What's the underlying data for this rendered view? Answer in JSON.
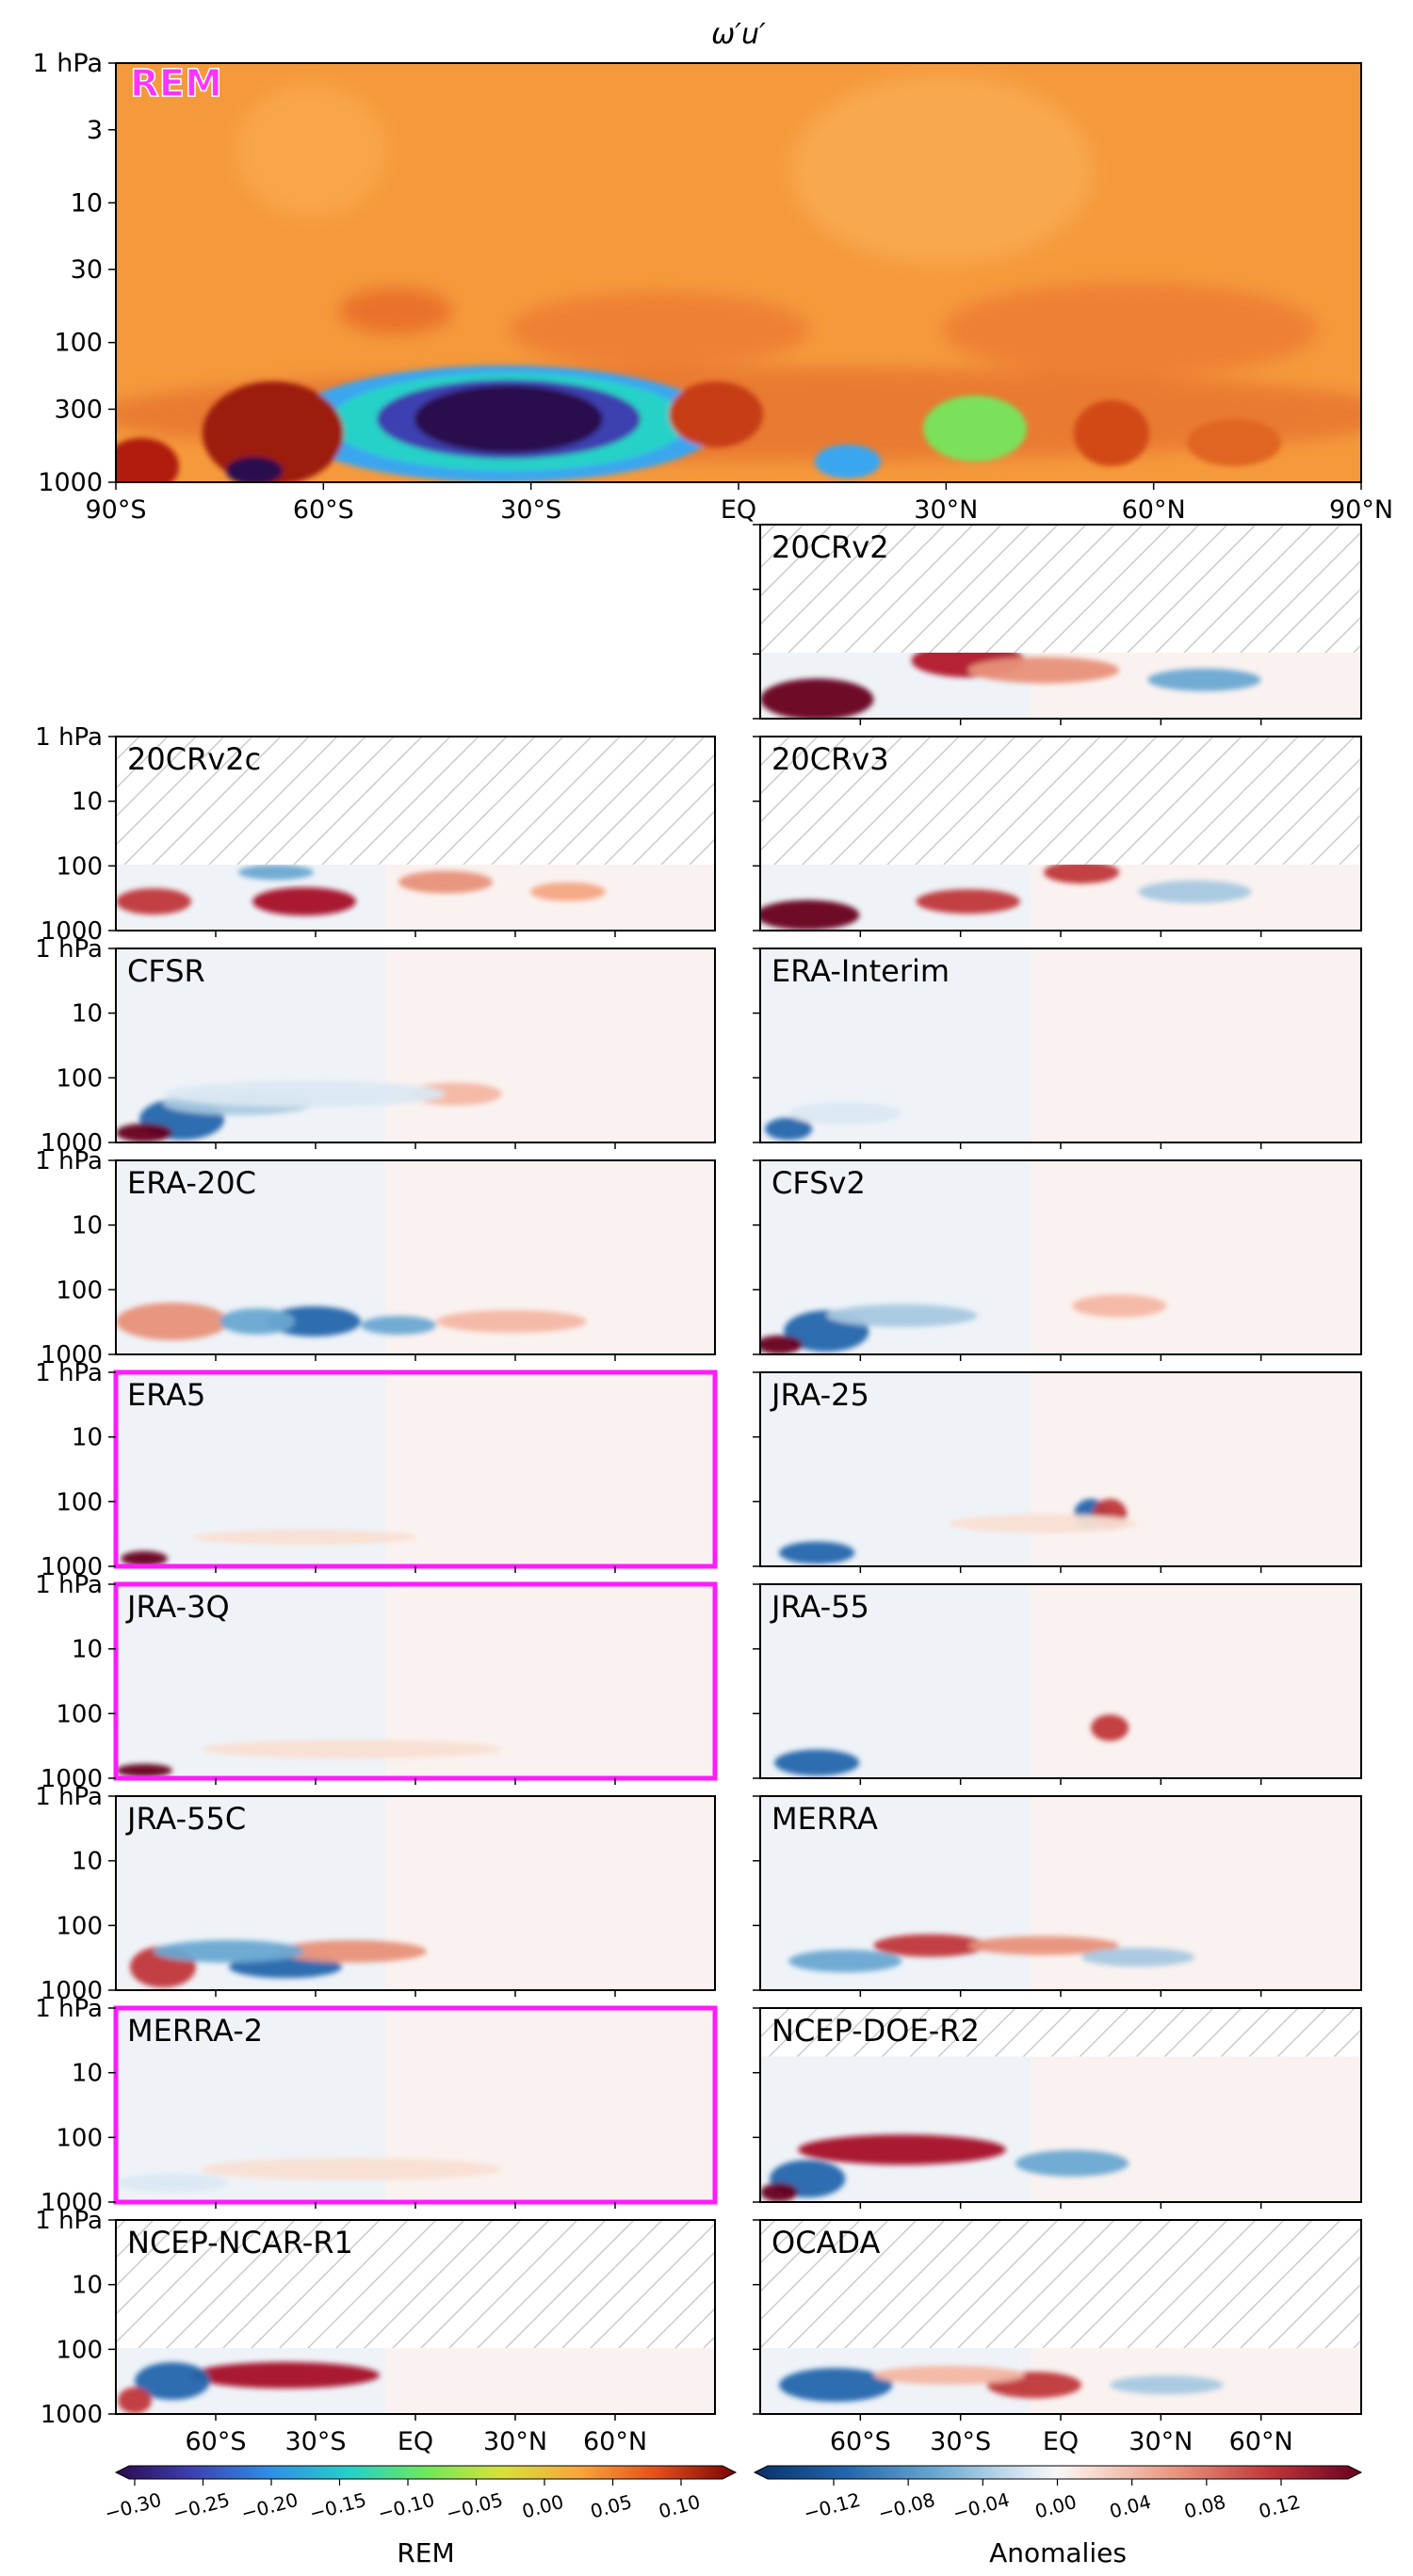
{
  "figure": {
    "title": "ω′u′"
  },
  "chart_data": [
    {
      "type": "heatmap",
      "panel": "REM",
      "title": "ω′u′",
      "xlabel": "",
      "ylabel": "",
      "x_ticks": [
        "90°S",
        "60°S",
        "30°S",
        "EQ",
        "30°N",
        "60°N",
        "90°N"
      ],
      "y_ticks": [
        "1 hPa",
        "3",
        "10",
        "30",
        "100",
        "300",
        "1000"
      ],
      "y_scale": "log",
      "xlim": [
        -90,
        90
      ],
      "ylim_hPa": [
        1000,
        1
      ],
      "background_value": 0.04,
      "features": [
        {
          "lat": -32,
          "p_hPa": 350,
          "value": -0.3
        },
        {
          "lat": -35,
          "p_hPa": 380,
          "value": -0.15
        },
        {
          "lat": -70,
          "p_hPa": 450,
          "value": 0.1
        },
        {
          "lat": -80,
          "p_hPa": 800,
          "value": 0.1
        },
        {
          "lat": 5,
          "p_hPa": 350,
          "value": 0.08
        },
        {
          "lat": 38,
          "p_hPa": 420,
          "value": -0.1
        },
        {
          "lat": 60,
          "p_hPa": 450,
          "value": 0.08
        }
      ]
    },
    {
      "type": "heatmap",
      "panel": "20CRv2",
      "hatched_above_hPa": 100,
      "y_ticks_labeled": false
    },
    {
      "type": "heatmap",
      "panel": "20CRv2c",
      "hatched_above_hPa": 100
    },
    {
      "type": "heatmap",
      "panel": "20CRv3",
      "hatched_above_hPa": 100
    },
    {
      "type": "heatmap",
      "panel": "CFSR"
    },
    {
      "type": "heatmap",
      "panel": "CFSv2"
    },
    {
      "type": "heatmap",
      "panel": "ERA-20C"
    },
    {
      "type": "heatmap",
      "panel": "ERA-Interim"
    },
    {
      "type": "heatmap",
      "panel": "ERA5",
      "highlighted": true
    },
    {
      "type": "heatmap",
      "panel": "JRA-25"
    },
    {
      "type": "heatmap",
      "panel": "JRA-3Q",
      "highlighted": true
    },
    {
      "type": "heatmap",
      "panel": "JRA-55"
    },
    {
      "type": "heatmap",
      "panel": "JRA-55C"
    },
    {
      "type": "heatmap",
      "panel": "MERRA"
    },
    {
      "type": "heatmap",
      "panel": "MERRA-2",
      "highlighted": true
    },
    {
      "type": "heatmap",
      "panel": "NCEP-DOE-R2",
      "hatched_above_hPa": 10
    },
    {
      "type": "heatmap",
      "panel": "NCEP-NCAR-R1",
      "hatched_above_hPa": 100
    },
    {
      "type": "heatmap",
      "panel": "OCADA",
      "hatched_above_hPa": 100
    }
  ],
  "main_panel": {
    "label": "REM",
    "x_ticks": [
      "90°S",
      "60°S",
      "30°S",
      "EQ",
      "30°N",
      "60°N",
      "90°N"
    ],
    "y_ticks": [
      "1 hPa",
      "3",
      "10",
      "30",
      "100",
      "300",
      "1000"
    ]
  },
  "small_panels": {
    "y_ticks": [
      "1 hPa",
      "10",
      "100",
      "1000"
    ],
    "bottom_x_ticks": [
      "60°S",
      "30°S",
      "EQ",
      "30°N",
      "60°N"
    ],
    "labels": [
      "20CRv2",
      "20CRv2c",
      "20CRv3",
      "CFSR",
      "CFSv2",
      "ERA-20C",
      "ERA-Interim",
      "ERA5",
      "JRA-25",
      "JRA-3Q",
      "JRA-55",
      "JRA-55C",
      "MERRA",
      "MERRA-2",
      "NCEP-DOE-R2",
      "NCEP-NCAR-R1",
      "OCADA"
    ]
  },
  "colorbars": {
    "rem": {
      "label": "REM",
      "ticks": [
        "−0.30",
        "−0.25",
        "−0.20",
        "−0.15",
        "−0.10",
        "−0.05",
        "0.00",
        "0.05",
        "0.10"
      ]
    },
    "anomalies": {
      "label": "Anomalies",
      "ticks": [
        "−0.12",
        "−0.08",
        "−0.04",
        "0.00",
        "0.04",
        "0.08",
        "0.12"
      ]
    }
  },
  "colors": {
    "highlight": "#ff1aff",
    "hatch": "#c8c8c8",
    "rem_label_fill": "#ff33ff"
  }
}
